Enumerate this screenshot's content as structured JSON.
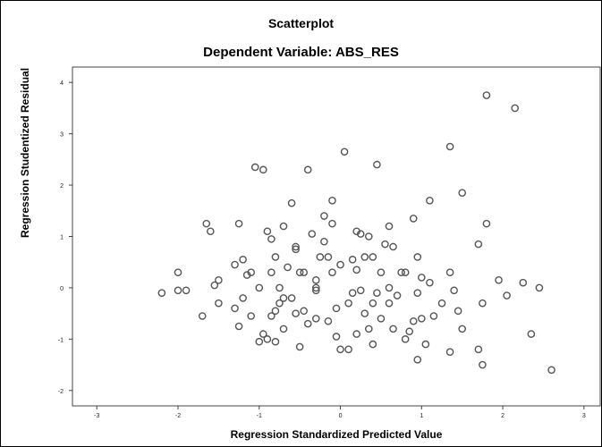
{
  "chart_data": {
    "type": "scatter",
    "title": "Scatterplot",
    "subtitle": "Dependent Variable: ABS_RES",
    "xlabel": "Regression Standardized Predicted Value",
    "ylabel": "Regression Studentized Residual",
    "xlim": [
      -3.3,
      3.2
    ],
    "ylim": [
      -2.3,
      4.3
    ],
    "xticks": [
      -3,
      -2,
      -1,
      0,
      1,
      2,
      3
    ],
    "yticks": [
      -2,
      -1,
      0,
      1,
      2,
      3,
      4
    ],
    "grid": false,
    "marker_color": "#555555",
    "points": [
      [
        -2.2,
        -0.1
      ],
      [
        -2.0,
        0.3
      ],
      [
        -2.0,
        -0.05
      ],
      [
        -1.9,
        -0.05
      ],
      [
        -1.7,
        -0.55
      ],
      [
        -1.65,
        1.25
      ],
      [
        -1.6,
        1.1
      ],
      [
        -1.55,
        0.05
      ],
      [
        -1.5,
        -0.3
      ],
      [
        -1.5,
        0.15
      ],
      [
        -1.3,
        -0.4
      ],
      [
        -1.25,
        1.25
      ],
      [
        -1.25,
        -0.75
      ],
      [
        -1.2,
        0.55
      ],
      [
        -1.2,
        -0.2
      ],
      [
        -1.15,
        0.25
      ],
      [
        -1.1,
        0.3
      ],
      [
        -1.1,
        -0.55
      ],
      [
        -1.05,
        2.35
      ],
      [
        -1.0,
        -1.05
      ],
      [
        -0.95,
        2.3
      ],
      [
        -0.95,
        -0.9
      ],
      [
        -0.9,
        1.1
      ],
      [
        -0.9,
        -1.0
      ],
      [
        -0.85,
        0.95
      ],
      [
        -0.85,
        -0.55
      ],
      [
        -0.85,
        0.3
      ],
      [
        -0.8,
        -0.45
      ],
      [
        -0.8,
        -1.05
      ],
      [
        -0.75,
        -0.3
      ],
      [
        -0.75,
        0.0
      ],
      [
        -0.7,
        1.2
      ],
      [
        -0.7,
        -0.8
      ],
      [
        -0.7,
        -0.2
      ],
      [
        -0.65,
        0.4
      ],
      [
        -0.6,
        1.65
      ],
      [
        -0.55,
        0.8
      ],
      [
        -0.55,
        0.75
      ],
      [
        -0.55,
        -0.5
      ],
      [
        -0.5,
        0.3
      ],
      [
        -0.5,
        -1.15
      ],
      [
        -0.45,
        -0.45
      ],
      [
        -0.4,
        2.3
      ],
      [
        -0.4,
        -0.7
      ],
      [
        -0.35,
        1.05
      ],
      [
        -0.3,
        -0.6
      ],
      [
        -0.3,
        0.15
      ],
      [
        -0.3,
        -0.05
      ],
      [
        -0.25,
        0.6
      ],
      [
        -0.2,
        1.4
      ],
      [
        -0.2,
        0.9
      ],
      [
        -0.15,
        -0.65
      ],
      [
        -0.15,
        0.6
      ],
      [
        -0.1,
        1.7
      ],
      [
        -0.1,
        1.25
      ],
      [
        -0.1,
        0.3
      ],
      [
        -0.05,
        -0.4
      ],
      [
        -0.05,
        -0.95
      ],
      [
        0.0,
        -1.2
      ],
      [
        0.0,
        0.45
      ],
      [
        0.05,
        2.65
      ],
      [
        0.1,
        -0.3
      ],
      [
        0.1,
        -1.2
      ],
      [
        0.15,
        0.55
      ],
      [
        0.15,
        -0.1
      ],
      [
        0.2,
        1.1
      ],
      [
        0.2,
        -0.9
      ],
      [
        0.25,
        1.05
      ],
      [
        0.25,
        -0.05
      ],
      [
        0.3,
        -0.5
      ],
      [
        0.3,
        0.6
      ],
      [
        0.35,
        1.0
      ],
      [
        0.35,
        -0.8
      ],
      [
        0.4,
        -0.3
      ],
      [
        0.4,
        -1.1
      ],
      [
        0.45,
        2.4
      ],
      [
        0.45,
        -0.1
      ],
      [
        0.5,
        -0.6
      ],
      [
        0.5,
        0.3
      ],
      [
        0.55,
        0.85
      ],
      [
        0.6,
        1.2
      ],
      [
        0.6,
        0.0
      ],
      [
        0.65,
        0.8
      ],
      [
        0.65,
        -0.8
      ],
      [
        0.7,
        -0.15
      ],
      [
        0.75,
        0.3
      ],
      [
        0.8,
        -1.0
      ],
      [
        0.85,
        -0.85
      ],
      [
        0.9,
        1.35
      ],
      [
        0.9,
        -0.65
      ],
      [
        0.95,
        0.6
      ],
      [
        0.95,
        -1.4
      ],
      [
        1.0,
        -0.6
      ],
      [
        1.0,
        0.2
      ],
      [
        1.05,
        -1.1
      ],
      [
        1.1,
        1.7
      ],
      [
        1.1,
        0.1
      ],
      [
        1.15,
        -0.55
      ],
      [
        1.35,
        2.75
      ],
      [
        1.35,
        0.3
      ],
      [
        1.35,
        -1.25
      ],
      [
        1.4,
        -0.05
      ],
      [
        1.45,
        -0.45
      ],
      [
        1.5,
        1.85
      ],
      [
        1.5,
        -0.8
      ],
      [
        1.7,
        0.85
      ],
      [
        1.75,
        -0.3
      ],
      [
        1.7,
        -1.2
      ],
      [
        1.75,
        -1.5
      ],
      [
        1.8,
        3.75
      ],
      [
        1.8,
        1.25
      ],
      [
        1.95,
        0.15
      ],
      [
        2.05,
        -0.15
      ],
      [
        2.15,
        3.5
      ],
      [
        2.25,
        0.1
      ],
      [
        2.35,
        -0.9
      ],
      [
        2.45,
        0.0
      ],
      [
        2.6,
        -1.6
      ],
      [
        -0.3,
        0.0
      ],
      [
        0.6,
        -0.3
      ],
      [
        -1.0,
        0.0
      ],
      [
        0.2,
        0.35
      ],
      [
        -0.6,
        -0.2
      ],
      [
        0.8,
        0.3
      ],
      [
        -0.45,
        0.3
      ],
      [
        1.25,
        -0.3
      ],
      [
        -0.8,
        0.6
      ],
      [
        0.4,
        0.6
      ],
      [
        -1.3,
        0.45
      ],
      [
        0.95,
        -0.1
      ]
    ]
  }
}
